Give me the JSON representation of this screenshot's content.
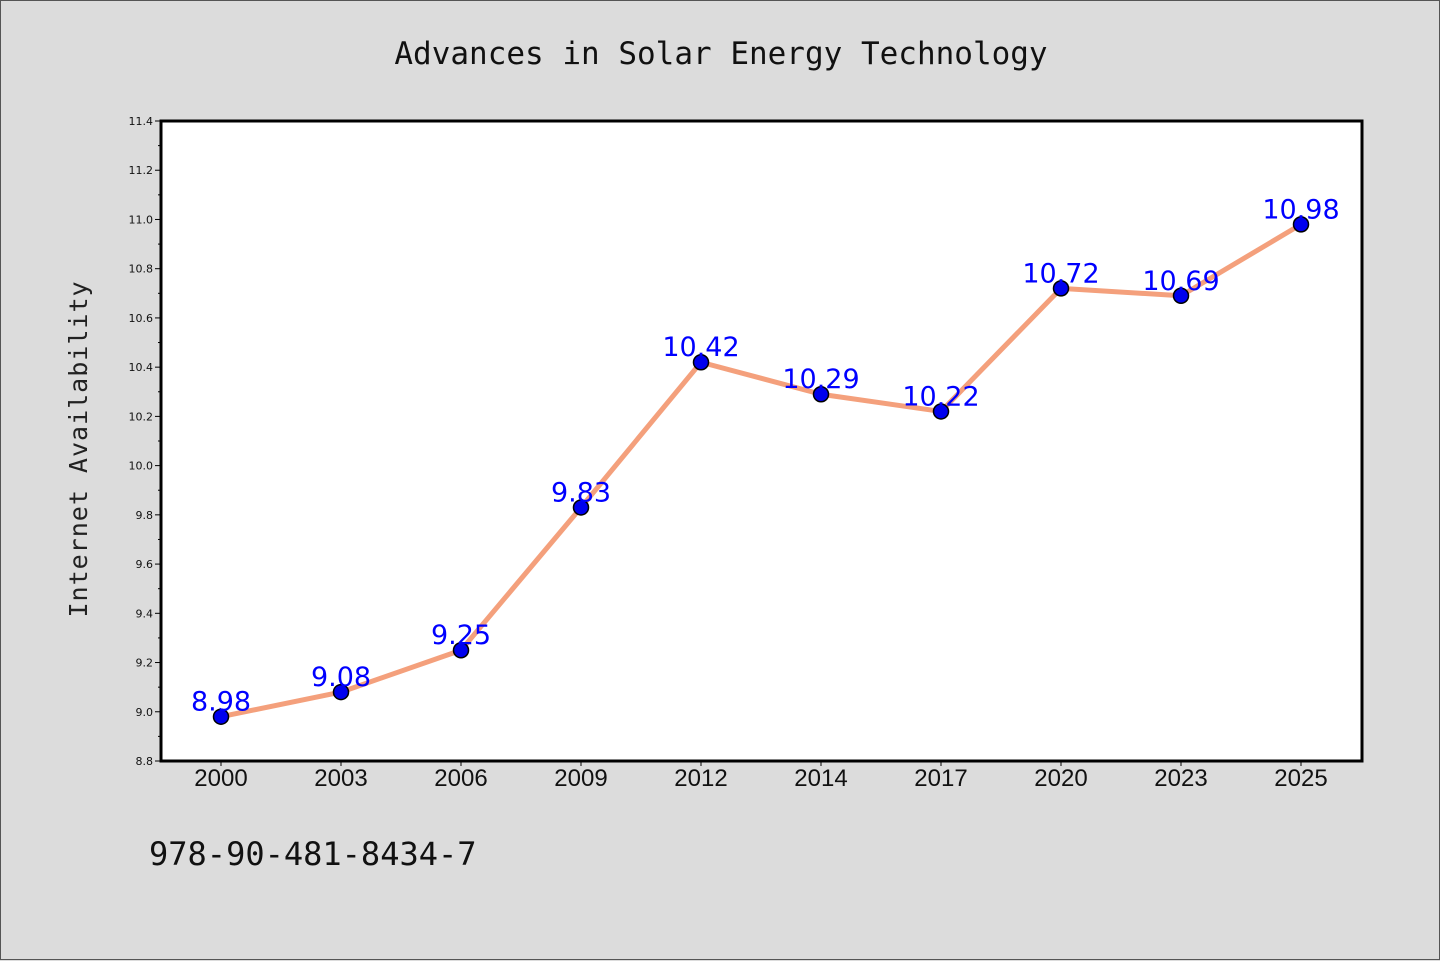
{
  "chart_data": {
    "type": "line",
    "title": "Advances in Solar Energy Technology",
    "ylabel": "Internet Availability",
    "xlabel": "",
    "categories": [
      "2000",
      "2003",
      "2006",
      "2009",
      "2012",
      "2014",
      "2017",
      "2020",
      "2023",
      "2025"
    ],
    "series": [
      {
        "values": [
          8.98,
          9.08,
          9.25,
          9.83,
          10.42,
          10.29,
          10.22,
          10.72,
          10.69,
          10.98
        ]
      }
    ],
    "data_labels": [
      "8.98",
      "9.08",
      "9.25",
      "9.83",
      "10.42",
      "10.29",
      "10.22",
      "10.72",
      "10.69",
      "10.98"
    ],
    "ylim": [
      8.8,
      11.4
    ],
    "yticks": [
      "8.8",
      "9.0",
      "9.2",
      "9.4",
      "9.6",
      "9.8",
      "10.0",
      "10.2",
      "10.4",
      "10.6",
      "10.8",
      "11.0",
      "11.2",
      "11.4"
    ],
    "grid": false,
    "legend": "none",
    "colors": {
      "line": "#f4a07c",
      "marker": "#0000ee",
      "label": "#0000ff",
      "background": "#dcdcdc",
      "plot_background": "#ffffff"
    }
  },
  "footer": {
    "isbn": "978-90-481-8434-7"
  }
}
